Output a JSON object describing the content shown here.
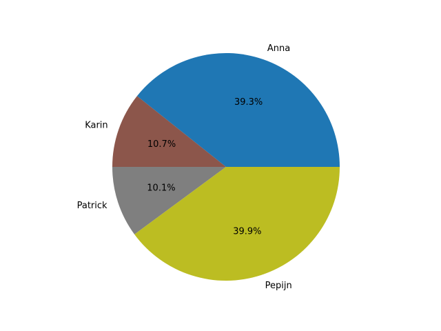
{
  "chart_data": {
    "type": "pie",
    "labels": [
      "Anna",
      "Karin",
      "Patrick",
      "Pepijn"
    ],
    "values": [
      39.3,
      10.7,
      10.1,
      39.9
    ],
    "percent_labels": [
      "39.3%",
      "10.7%",
      "10.1%",
      "39.9%"
    ],
    "colors": [
      "#1f77b4",
      "#8c564b",
      "#7f7f7f",
      "#bcbd22"
    ],
    "start_angle": 0,
    "direction": "counterclockwise"
  }
}
